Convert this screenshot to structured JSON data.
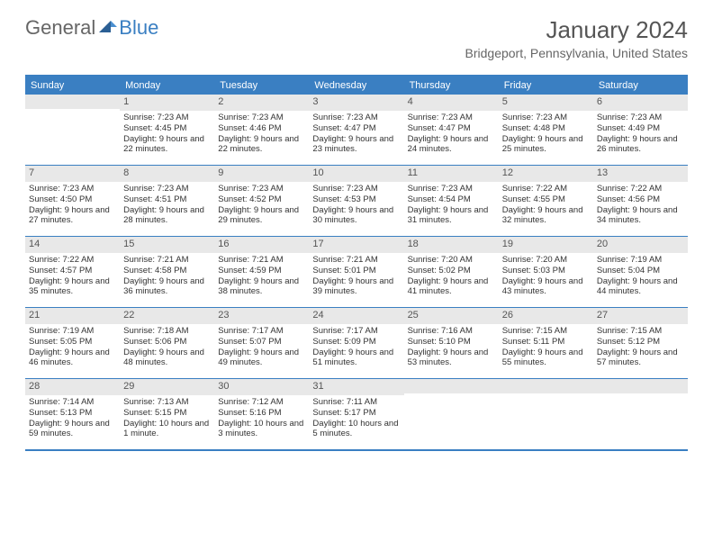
{
  "logo": {
    "part1": "General",
    "part2": "Blue"
  },
  "title": "January 2024",
  "location": "Bridgeport, Pennsylvania, United States",
  "colors": {
    "accent": "#3a7fc2",
    "header_bg": "#3a7fc2",
    "daynum_bg": "#e8e8e8",
    "text": "#333333"
  },
  "day_headers": [
    "Sunday",
    "Monday",
    "Tuesday",
    "Wednesday",
    "Thursday",
    "Friday",
    "Saturday"
  ],
  "weeks": [
    [
      {
        "n": "",
        "sr": "",
        "ss": "",
        "dl": ""
      },
      {
        "n": "1",
        "sr": "Sunrise: 7:23 AM",
        "ss": "Sunset: 4:45 PM",
        "dl": "Daylight: 9 hours and 22 minutes."
      },
      {
        "n": "2",
        "sr": "Sunrise: 7:23 AM",
        "ss": "Sunset: 4:46 PM",
        "dl": "Daylight: 9 hours and 22 minutes."
      },
      {
        "n": "3",
        "sr": "Sunrise: 7:23 AM",
        "ss": "Sunset: 4:47 PM",
        "dl": "Daylight: 9 hours and 23 minutes."
      },
      {
        "n": "4",
        "sr": "Sunrise: 7:23 AM",
        "ss": "Sunset: 4:47 PM",
        "dl": "Daylight: 9 hours and 24 minutes."
      },
      {
        "n": "5",
        "sr": "Sunrise: 7:23 AM",
        "ss": "Sunset: 4:48 PM",
        "dl": "Daylight: 9 hours and 25 minutes."
      },
      {
        "n": "6",
        "sr": "Sunrise: 7:23 AM",
        "ss": "Sunset: 4:49 PM",
        "dl": "Daylight: 9 hours and 26 minutes."
      }
    ],
    [
      {
        "n": "7",
        "sr": "Sunrise: 7:23 AM",
        "ss": "Sunset: 4:50 PM",
        "dl": "Daylight: 9 hours and 27 minutes."
      },
      {
        "n": "8",
        "sr": "Sunrise: 7:23 AM",
        "ss": "Sunset: 4:51 PM",
        "dl": "Daylight: 9 hours and 28 minutes."
      },
      {
        "n": "9",
        "sr": "Sunrise: 7:23 AM",
        "ss": "Sunset: 4:52 PM",
        "dl": "Daylight: 9 hours and 29 minutes."
      },
      {
        "n": "10",
        "sr": "Sunrise: 7:23 AM",
        "ss": "Sunset: 4:53 PM",
        "dl": "Daylight: 9 hours and 30 minutes."
      },
      {
        "n": "11",
        "sr": "Sunrise: 7:23 AM",
        "ss": "Sunset: 4:54 PM",
        "dl": "Daylight: 9 hours and 31 minutes."
      },
      {
        "n": "12",
        "sr": "Sunrise: 7:22 AM",
        "ss": "Sunset: 4:55 PM",
        "dl": "Daylight: 9 hours and 32 minutes."
      },
      {
        "n": "13",
        "sr": "Sunrise: 7:22 AM",
        "ss": "Sunset: 4:56 PM",
        "dl": "Daylight: 9 hours and 34 minutes."
      }
    ],
    [
      {
        "n": "14",
        "sr": "Sunrise: 7:22 AM",
        "ss": "Sunset: 4:57 PM",
        "dl": "Daylight: 9 hours and 35 minutes."
      },
      {
        "n": "15",
        "sr": "Sunrise: 7:21 AM",
        "ss": "Sunset: 4:58 PM",
        "dl": "Daylight: 9 hours and 36 minutes."
      },
      {
        "n": "16",
        "sr": "Sunrise: 7:21 AM",
        "ss": "Sunset: 4:59 PM",
        "dl": "Daylight: 9 hours and 38 minutes."
      },
      {
        "n": "17",
        "sr": "Sunrise: 7:21 AM",
        "ss": "Sunset: 5:01 PM",
        "dl": "Daylight: 9 hours and 39 minutes."
      },
      {
        "n": "18",
        "sr": "Sunrise: 7:20 AM",
        "ss": "Sunset: 5:02 PM",
        "dl": "Daylight: 9 hours and 41 minutes."
      },
      {
        "n": "19",
        "sr": "Sunrise: 7:20 AM",
        "ss": "Sunset: 5:03 PM",
        "dl": "Daylight: 9 hours and 43 minutes."
      },
      {
        "n": "20",
        "sr": "Sunrise: 7:19 AM",
        "ss": "Sunset: 5:04 PM",
        "dl": "Daylight: 9 hours and 44 minutes."
      }
    ],
    [
      {
        "n": "21",
        "sr": "Sunrise: 7:19 AM",
        "ss": "Sunset: 5:05 PM",
        "dl": "Daylight: 9 hours and 46 minutes."
      },
      {
        "n": "22",
        "sr": "Sunrise: 7:18 AM",
        "ss": "Sunset: 5:06 PM",
        "dl": "Daylight: 9 hours and 48 minutes."
      },
      {
        "n": "23",
        "sr": "Sunrise: 7:17 AM",
        "ss": "Sunset: 5:07 PM",
        "dl": "Daylight: 9 hours and 49 minutes."
      },
      {
        "n": "24",
        "sr": "Sunrise: 7:17 AM",
        "ss": "Sunset: 5:09 PM",
        "dl": "Daylight: 9 hours and 51 minutes."
      },
      {
        "n": "25",
        "sr": "Sunrise: 7:16 AM",
        "ss": "Sunset: 5:10 PM",
        "dl": "Daylight: 9 hours and 53 minutes."
      },
      {
        "n": "26",
        "sr": "Sunrise: 7:15 AM",
        "ss": "Sunset: 5:11 PM",
        "dl": "Daylight: 9 hours and 55 minutes."
      },
      {
        "n": "27",
        "sr": "Sunrise: 7:15 AM",
        "ss": "Sunset: 5:12 PM",
        "dl": "Daylight: 9 hours and 57 minutes."
      }
    ],
    [
      {
        "n": "28",
        "sr": "Sunrise: 7:14 AM",
        "ss": "Sunset: 5:13 PM",
        "dl": "Daylight: 9 hours and 59 minutes."
      },
      {
        "n": "29",
        "sr": "Sunrise: 7:13 AM",
        "ss": "Sunset: 5:15 PM",
        "dl": "Daylight: 10 hours and 1 minute."
      },
      {
        "n": "30",
        "sr": "Sunrise: 7:12 AM",
        "ss": "Sunset: 5:16 PM",
        "dl": "Daylight: 10 hours and 3 minutes."
      },
      {
        "n": "31",
        "sr": "Sunrise: 7:11 AM",
        "ss": "Sunset: 5:17 PM",
        "dl": "Daylight: 10 hours and 5 minutes."
      },
      {
        "n": "",
        "sr": "",
        "ss": "",
        "dl": ""
      },
      {
        "n": "",
        "sr": "",
        "ss": "",
        "dl": ""
      },
      {
        "n": "",
        "sr": "",
        "ss": "",
        "dl": ""
      }
    ]
  ]
}
